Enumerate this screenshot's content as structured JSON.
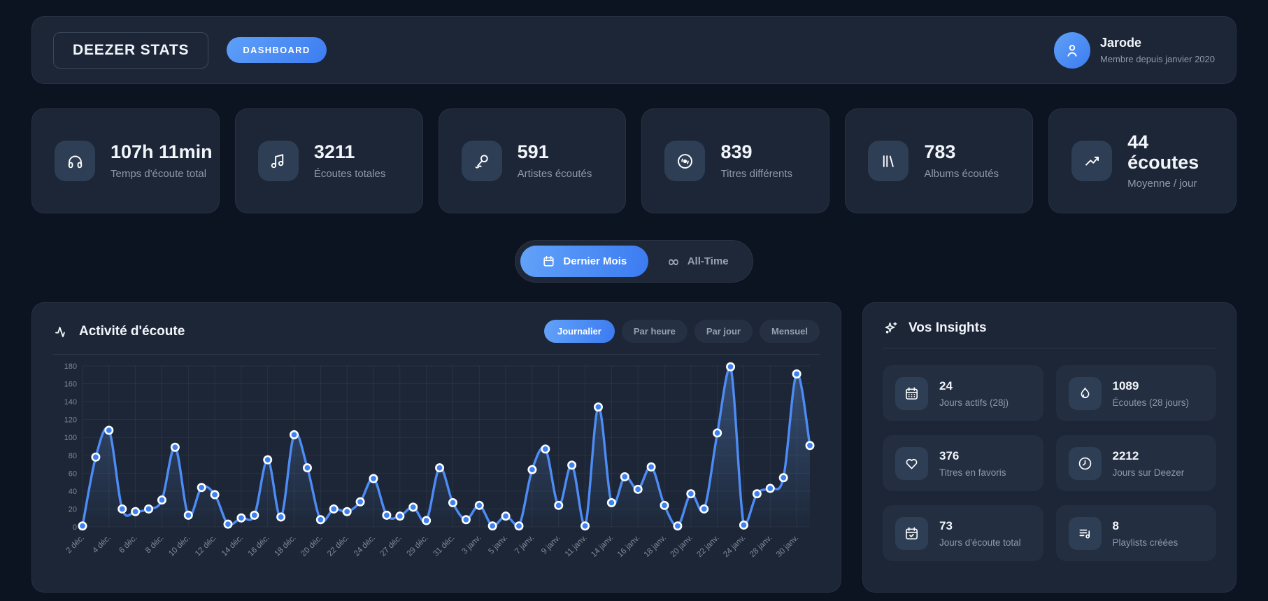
{
  "header": {
    "app_title": "DEEZER STATS",
    "badge": "DASHBOARD",
    "user": {
      "name": "Jarode",
      "subtitle": "Membre depuis janvier 2020",
      "avatar_icon": "person-icon"
    }
  },
  "stats": [
    {
      "icon": "headphones-icon",
      "value": "107h 11min",
      "label": "Temps d'écoute total"
    },
    {
      "icon": "music-note-icon",
      "value": "3211",
      "label": "Écoutes totales"
    },
    {
      "icon": "microphone-icon",
      "value": "591",
      "label": "Artistes écoutés"
    },
    {
      "icon": "disc-icon",
      "value": "839",
      "label": "Titres différents"
    },
    {
      "icon": "library-icon",
      "value": "783",
      "label": "Albums écoutés"
    },
    {
      "icon": "trending-up-icon",
      "value": "44 écoutes",
      "label": "Moyenne / jour"
    }
  ],
  "period_toggle": {
    "options": [
      {
        "label": "Dernier Mois",
        "icon": "calendar-icon",
        "active": true
      },
      {
        "label": "All-Time",
        "icon": "infinity-icon",
        "active": false
      }
    ]
  },
  "activity": {
    "title": "Activité d'écoute",
    "title_icon": "activity-icon",
    "tabs": [
      {
        "label": "Journalier",
        "active": true
      },
      {
        "label": "Par heure",
        "active": false
      },
      {
        "label": "Par jour",
        "active": false
      },
      {
        "label": "Mensuel",
        "active": false
      }
    ]
  },
  "chart_data": {
    "type": "line",
    "title": "Activité d'écoute - Journalier",
    "x": [
      "2 déc.",
      "",
      "4 déc.",
      "",
      "6 déc.",
      "",
      "8 déc.",
      "",
      "10 déc.",
      "",
      "12 déc.",
      "",
      "14 déc.",
      "",
      "16 déc.",
      "",
      "18 déc.",
      "",
      "20 déc.",
      "",
      "22 déc.",
      "",
      "24 déc.",
      "",
      "27 déc.",
      "",
      "29 déc.",
      "",
      "31 déc.",
      "",
      "3 janv.",
      "",
      "5 janv.",
      "",
      "7 janv.",
      "",
      "9 janv.",
      "",
      "11 janv.",
      "",
      "14 janv.",
      "",
      "16 janv.",
      "",
      "18 janv.",
      "",
      "20 janv.",
      "",
      "22 janv.",
      "",
      "24 janv.",
      "",
      "28 janv.",
      "",
      "30 janv.",
      ""
    ],
    "values": [
      1,
      78,
      108,
      20,
      17,
      20,
      30,
      89,
      13,
      44,
      36,
      3,
      10,
      13,
      75,
      11,
      103,
      66,
      8,
      20,
      17,
      28,
      54,
      13,
      12,
      22,
      7,
      66,
      27,
      8,
      24,
      1,
      12,
      1,
      64,
      87,
      24,
      69,
      1,
      134,
      27,
      56,
      42,
      67,
      24,
      1,
      37,
      20,
      105,
      179,
      2,
      37,
      43,
      55,
      171,
      91
    ],
    "ylim": [
      0,
      180
    ],
    "yticks": [
      0,
      20,
      40,
      60,
      80,
      100,
      120,
      140,
      160,
      180
    ],
    "grid": true,
    "legend": "none",
    "line_color": "#4e8cf5",
    "point_fill": "#3e82f2",
    "point_stroke": "#ffffff",
    "area_fill_top": "rgba(90,135,205,0.42)",
    "area_fill_bottom": "rgba(90,135,205,0.02)"
  },
  "insights": {
    "title": "Vos Insights",
    "title_icon": "sparkles-icon",
    "cards": [
      {
        "icon": "calendar-icon",
        "value": "24",
        "label": "Jours actifs (28j)"
      },
      {
        "icon": "flame-icon",
        "value": "1089",
        "label": "Écoutes (28 jours)"
      },
      {
        "icon": "heart-icon",
        "value": "376",
        "label": "Titres en favoris"
      },
      {
        "icon": "clock-icon",
        "value": "2212",
        "label": "Jours sur Deezer"
      },
      {
        "icon": "calendar-check-icon",
        "value": "73",
        "label": "Jours d'écoute total"
      },
      {
        "icon": "playlist-icon",
        "value": "8",
        "label": "Playlists créées"
      }
    ]
  },
  "colors": {
    "page_bg": "#0c1422",
    "panel_bg": "#1c2636",
    "card_inner_bg": "#232e40",
    "icon_tile_bg": "#2e3e55",
    "accent_blue": "#3c7cf1",
    "accent_blue_light": "#5fa0f8",
    "muted_text": "#8e99ab",
    "chart_line": "#4e8cf5"
  }
}
